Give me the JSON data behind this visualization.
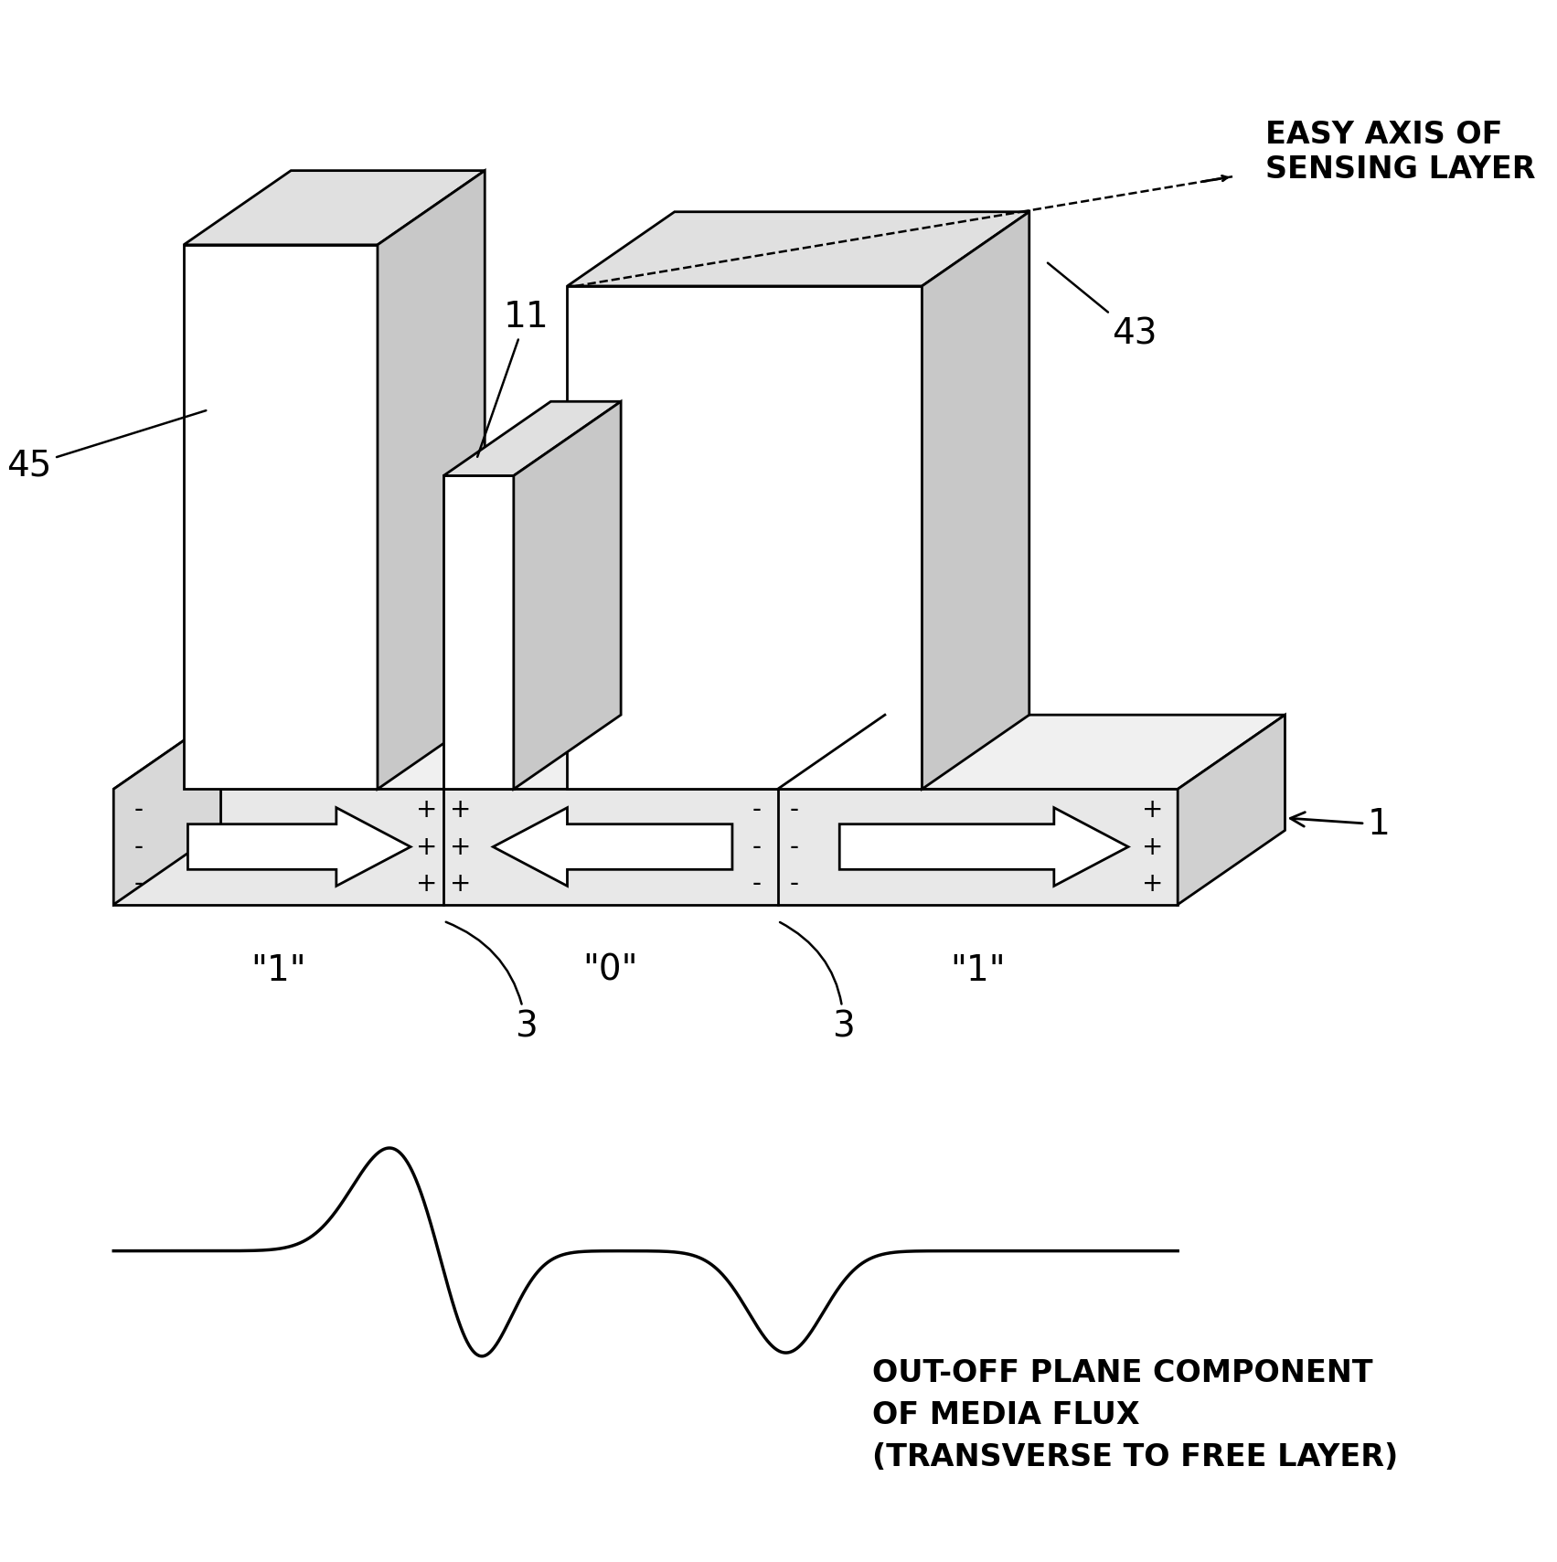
{
  "bg_color": "#ffffff",
  "line_color": "#000000",
  "fig_width": 17.03,
  "fig_height": 17.09,
  "dpi": 100,
  "labels": {
    "label_11": "11",
    "label_43": "43",
    "label_45": "45",
    "label_1": "1",
    "label_3a": "3",
    "label_3b": "3",
    "label_bit1a": "\"1\"",
    "label_bit0": "\"0\"",
    "label_bit1b": "\"1\"",
    "easy_axis": "EASY AXIS OF\nSENSING LAYER",
    "flux_label": "OUT-OFF PLANE COMPONENT\nOF MEDIA FLUX\n(TRANSVERSE TO FREE LAYER)"
  }
}
